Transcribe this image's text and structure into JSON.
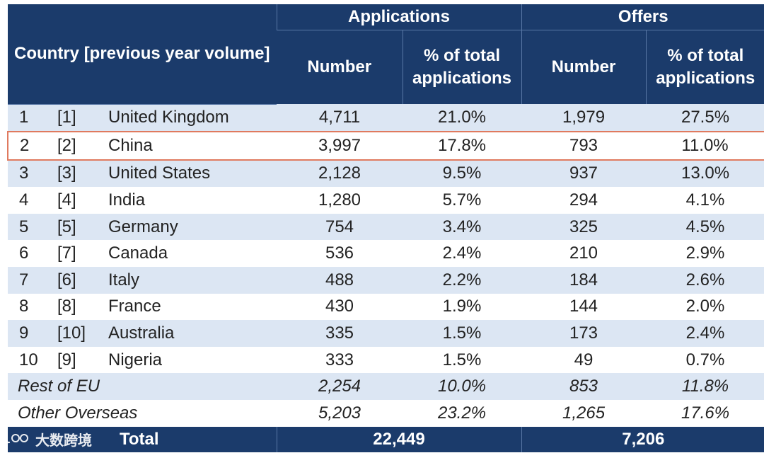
{
  "table": {
    "header": {
      "country_col": "Country [previous year volume]",
      "group_applications": "Applications",
      "group_offers": "Offers",
      "number": "Number",
      "percent": "% of total applications"
    },
    "rows": [
      {
        "rank": "1",
        "prev": "[1]",
        "country": "United Kingdom",
        "app_num": "4,711",
        "app_pct": "21.0%",
        "off_num": "1,979",
        "off_pct": "27.5%"
      },
      {
        "rank": "2",
        "prev": "[2]",
        "country": "China",
        "app_num": "3,997",
        "app_pct": "17.8%",
        "off_num": "793",
        "off_pct": "11.0%"
      },
      {
        "rank": "3",
        "prev": "[3]",
        "country": "United States",
        "app_num": "2,128",
        "app_pct": "9.5%",
        "off_num": "937",
        "off_pct": "13.0%"
      },
      {
        "rank": "4",
        "prev": "[4]",
        "country": "India",
        "app_num": "1,280",
        "app_pct": "5.7%",
        "off_num": "294",
        "off_pct": "4.1%"
      },
      {
        "rank": "5",
        "prev": "[5]",
        "country": "Germany",
        "app_num": "754",
        "app_pct": "3.4%",
        "off_num": "325",
        "off_pct": "4.5%"
      },
      {
        "rank": "6",
        "prev": "[7]",
        "country": "Canada",
        "app_num": "536",
        "app_pct": "2.4%",
        "off_num": "210",
        "off_pct": "2.9%"
      },
      {
        "rank": "7",
        "prev": "[6]",
        "country": "Italy",
        "app_num": "488",
        "app_pct": "2.2%",
        "off_num": "184",
        "off_pct": "2.6%"
      },
      {
        "rank": "8",
        "prev": "[8]",
        "country": "France",
        "app_num": "430",
        "app_pct": "1.9%",
        "off_num": "144",
        "off_pct": "2.0%"
      },
      {
        "rank": "9",
        "prev": "[10]",
        "country": "Australia",
        "app_num": "335",
        "app_pct": "1.5%",
        "off_num": "173",
        "off_pct": "2.4%"
      },
      {
        "rank": "10",
        "prev": "[9]",
        "country": "Nigeria",
        "app_num": "333",
        "app_pct": "1.5%",
        "off_num": "49",
        "off_pct": "0.7%"
      }
    ],
    "groups": [
      {
        "label": "Rest of EU",
        "app_num": "2,254",
        "app_pct": "10.0%",
        "off_num": "853",
        "off_pct": "11.8%"
      },
      {
        "label": "Other Overseas",
        "app_num": "5,203",
        "app_pct": "23.2%",
        "off_num": "1,265",
        "off_pct": "17.6%"
      }
    ],
    "total": {
      "label": "Total",
      "applications": "22,449",
      "offers": "7,206"
    }
  },
  "watermark": {
    "text": "大数跨境",
    "icon": "logo-icon"
  },
  "colors": {
    "header_bg": "#1b3b6b",
    "row_shade": "#dce6f3",
    "highlight_border": "#e07a5f"
  }
}
